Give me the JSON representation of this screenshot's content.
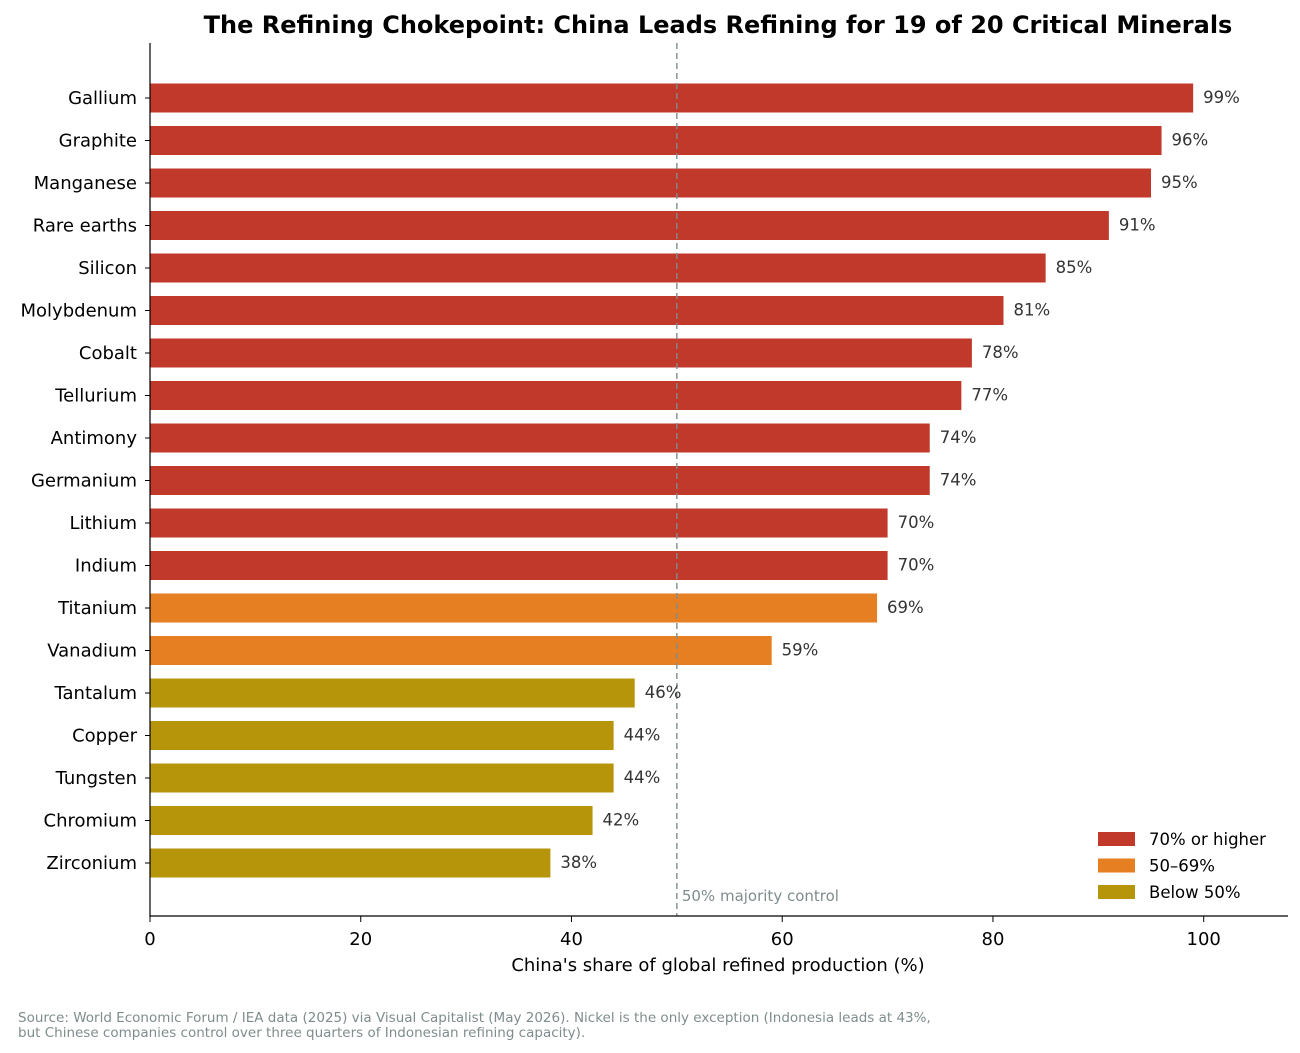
{
  "chart_data": {
    "type": "bar",
    "orientation": "horizontal",
    "title": "The Refining Chokepoint: China Leads Refining for 19 of 20 Critical Minerals",
    "xlabel": "China's share of global refined production (%)",
    "xlim": [
      0,
      108
    ],
    "xticks": [
      0,
      20,
      40,
      60,
      80,
      100
    ],
    "grid": false,
    "categories": [
      "Gallium",
      "Graphite",
      "Manganese",
      "Rare earths",
      "Silicon",
      "Molybdenum",
      "Cobalt",
      "Tellurium",
      "Antimony",
      "Germanium",
      "Lithium",
      "Indium",
      "Titanium",
      "Vanadium",
      "Tantalum",
      "Copper",
      "Tungsten",
      "Chromium",
      "Zirconium"
    ],
    "values": [
      99,
      96,
      95,
      91,
      85,
      81,
      78,
      77,
      74,
      74,
      70,
      70,
      69,
      59,
      46,
      44,
      44,
      42,
      38
    ],
    "value_labels": [
      "99%",
      "96%",
      "95%",
      "91%",
      "85%",
      "81%",
      "78%",
      "77%",
      "74%",
      "74%",
      "70%",
      "70%",
      "69%",
      "59%",
      "46%",
      "44%",
      "44%",
      "42%",
      "38%"
    ],
    "tiers": [
      "high",
      "high",
      "high",
      "high",
      "high",
      "high",
      "high",
      "high",
      "high",
      "high",
      "high",
      "high",
      "mid",
      "mid",
      "low",
      "low",
      "low",
      "low",
      "low"
    ],
    "legend": {
      "placement": "lower-right",
      "items": [
        {
          "key": "high",
          "label": "70% or higher",
          "color": "#c0392b"
        },
        {
          "key": "mid",
          "label": "50–69%",
          "color": "#e67e22"
        },
        {
          "key": "low",
          "label": "Below 50%",
          "color": "#b7950b"
        }
      ]
    },
    "reference_line": {
      "value": 50,
      "label": "50% majority control",
      "color": "#7f8c8d",
      "style": "dashed"
    }
  },
  "footnote": {
    "lines": [
      "Source: World Economic Forum / IEA data (2025) via Visual Capitalist (May 2026). Nickel is the only exception (Indonesia leads at 43%,",
      "but Chinese companies control over three quarters of Indonesian refining capacity)."
    ]
  }
}
